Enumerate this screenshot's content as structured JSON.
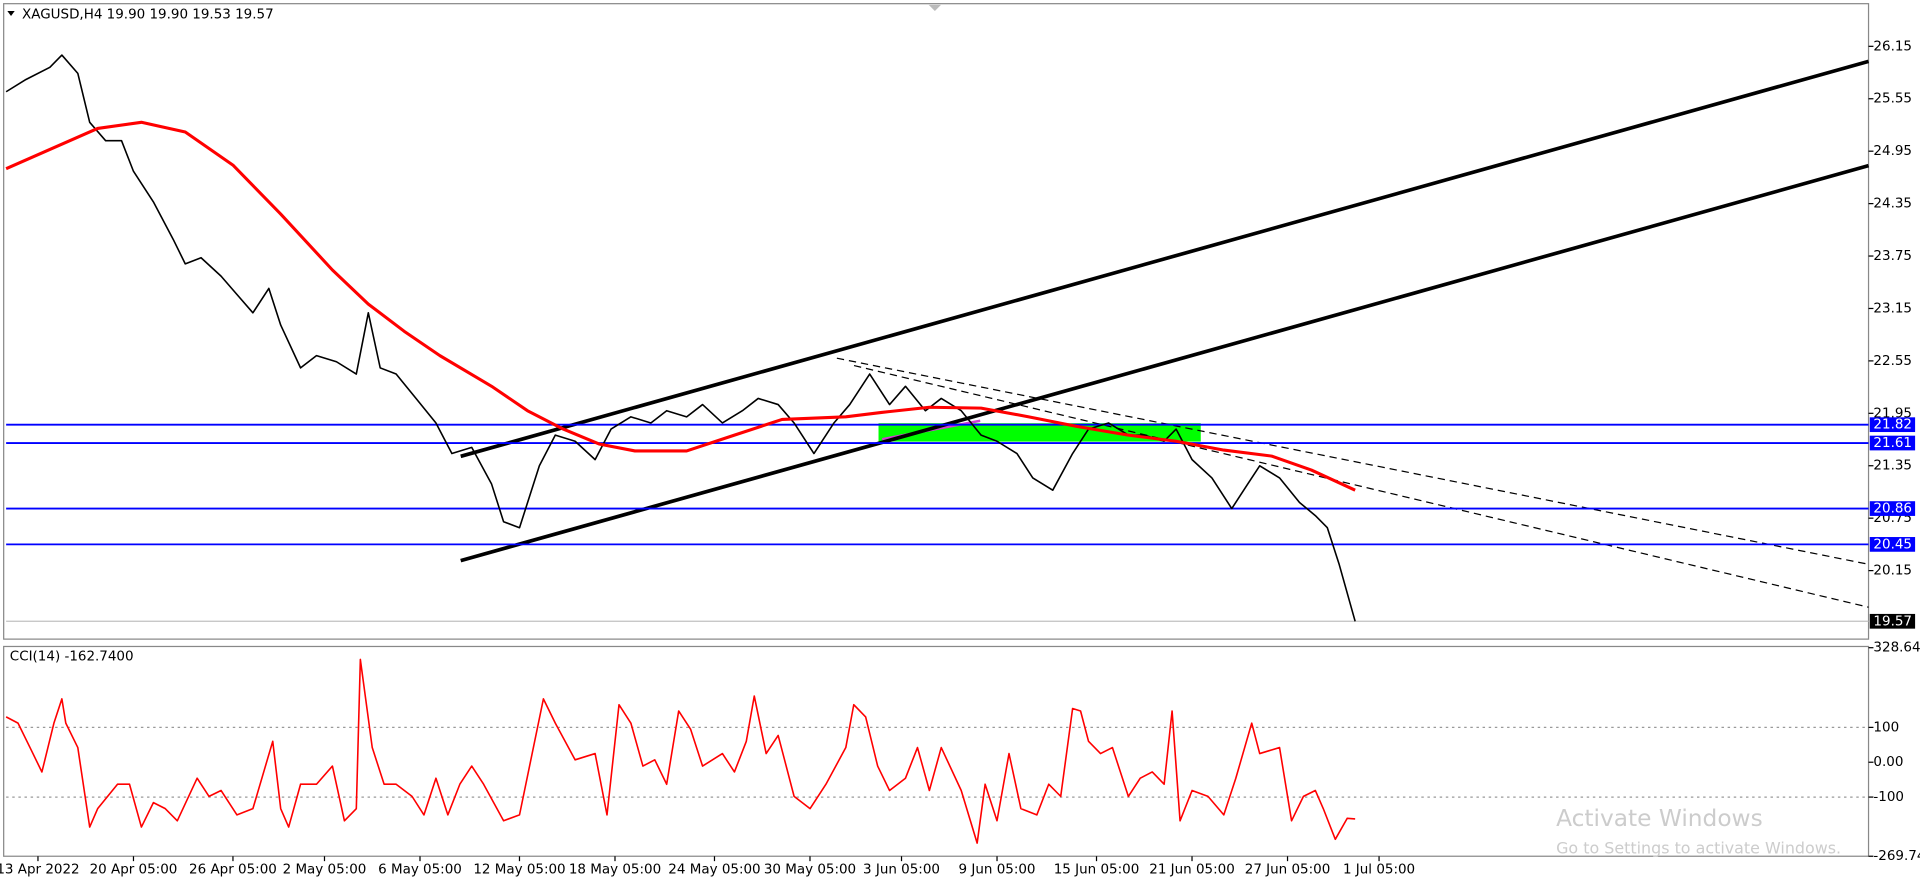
{
  "chart_data": [
    {
      "type": "line",
      "title": "XAGUSD,H4  19.90 19.90 19.53 19.57",
      "xlim": [
        0,
        468
      ],
      "ylim": [
        19.38,
        26.61
      ],
      "yticks": [
        26.15,
        25.55,
        24.95,
        24.35,
        23.75,
        23.15,
        22.55,
        21.95,
        21.35,
        20.75,
        20.15
      ],
      "levels": [
        21.82,
        21.61,
        20.86,
        20.45
      ],
      "level_color": "#0000ff",
      "last_value": 19.57,
      "grid": false,
      "series": [
        {
          "color": "#000000",
          "x": [
            0,
            5,
            11,
            14,
            18,
            21,
            25,
            29,
            32,
            37,
            42,
            45,
            49,
            54,
            58,
            62,
            66,
            69,
            74,
            78,
            83,
            88,
            91,
            94,
            98,
            103,
            108,
            112,
            117,
            122,
            125,
            129,
            134,
            138,
            143,
            148,
            152,
            157,
            162,
            166,
            171,
            175,
            180,
            185,
            189,
            194,
            198,
            203,
            208,
            212,
            217,
            222,
            226,
            231,
            235,
            240,
            245,
            249,
            254,
            258,
            263,
            268,
            272,
            277,
            282,
            286,
            291,
            294,
            298,
            303,
            308,
            312,
            315,
            320,
            325,
            329,
            332,
            335,
            339
          ],
          "values": [
            25.63,
            25.77,
            25.91,
            26.05,
            25.84,
            25.28,
            25.07,
            25.07,
            24.72,
            24.37,
            23.94,
            23.66,
            23.73,
            23.52,
            23.31,
            23.1,
            23.38,
            22.96,
            22.47,
            22.61,
            22.54,
            22.4,
            23.1,
            22.47,
            22.4,
            22.12,
            21.84,
            21.49,
            21.56,
            21.14,
            20.71,
            20.64,
            21.35,
            21.7,
            21.63,
            21.42,
            21.77,
            21.91,
            21.84,
            21.98,
            21.91,
            22.05,
            21.84,
            21.98,
            22.12,
            22.05,
            21.84,
            21.49,
            21.84,
            22.05,
            22.4,
            22.05,
            22.26,
            21.98,
            22.12,
            21.98,
            21.7,
            21.63,
            21.49,
            21.21,
            21.07,
            21.49,
            21.77,
            21.84,
            21.7,
            21.7,
            21.63,
            21.77,
            21.42,
            21.21,
            20.86,
            21.14,
            21.35,
            21.21,
            20.93,
            20.78,
            20.64,
            20.22,
            19.57
          ]
        },
        {
          "color": "#ff0000",
          "x": [
            0,
            11,
            23,
            34,
            45,
            57,
            69,
            82,
            91,
            100,
            109,
            122,
            131,
            140,
            149,
            158,
            171,
            183,
            195,
            211,
            220,
            232,
            245,
            257,
            269,
            282,
            294,
            306,
            318,
            328,
            339
          ],
          "values": [
            24.75,
            24.97,
            25.21,
            25.28,
            25.17,
            24.79,
            24.23,
            23.59,
            23.2,
            22.89,
            22.61,
            22.26,
            21.98,
            21.77,
            21.6,
            21.52,
            21.52,
            21.7,
            21.88,
            21.91,
            21.96,
            22.02,
            22.01,
            21.91,
            21.8,
            21.7,
            21.63,
            21.53,
            21.46,
            21.3,
            21.07
          ]
        }
      ]
    },
    {
      "type": "line",
      "title": "CCI(14) -162.7400",
      "xlim": [
        0,
        468
      ],
      "ylim": [
        -269.749,
        328.646
      ],
      "yticks": [
        328.646,
        100,
        {
          "value": 0,
          "label": "0.00"
        },
        -100,
        -269.749
      ],
      "levels": [
        100,
        -100
      ],
      "level_color": "#999999",
      "xticks": [
        {
          "value": 8,
          "label": "13 Apr 2022"
        },
        {
          "value": 32,
          "label": "20 Apr 05:00"
        },
        {
          "value": 57,
          "label": "26 Apr 05:00"
        },
        {
          "value": 80,
          "label": "2 May 05:00"
        },
        {
          "value": 104,
          "label": "6 May 05:00"
        },
        {
          "value": 129,
          "label": "12 May 05:00"
        },
        {
          "value": 153,
          "label": "18 May 05:00"
        },
        {
          "value": 178,
          "label": "24 May 05:00"
        },
        {
          "value": 202,
          "label": "30 May 05:00"
        },
        {
          "value": 225,
          "label": "3 Jun 05:00"
        },
        {
          "value": 249,
          "label": "9 Jun 05:00"
        },
        {
          "value": 274,
          "label": "15 Jun 05:00"
        },
        {
          "value": 298,
          "label": "21 Jun 05:00"
        },
        {
          "value": 322,
          "label": "27 Jun 05:00"
        },
        {
          "value": 345,
          "label": "1 Jul 05:00"
        }
      ],
      "series": [
        {
          "color": "#ff0000",
          "x": [
            0,
            3,
            6,
            9,
            12,
            14,
            15,
            18,
            21,
            23,
            28,
            31,
            34,
            37,
            40,
            43,
            48,
            51,
            54,
            58,
            62,
            67,
            69,
            71,
            74,
            78,
            82,
            85,
            88,
            89,
            92,
            95,
            98,
            102,
            105,
            108,
            111,
            114,
            117,
            120,
            125,
            129,
            135,
            138,
            143,
            148,
            151,
            154,
            157,
            160,
            163,
            166,
            169,
            172,
            175,
            180,
            183,
            186,
            188,
            191,
            194,
            198,
            202,
            206,
            211,
            213,
            216,
            219,
            222,
            226,
            229,
            232,
            235,
            240,
            244,
            246,
            249,
            252,
            255,
            259,
            262,
            265,
            268,
            270,
            272,
            275,
            278,
            282,
            285,
            288,
            291,
            293,
            295,
            298,
            302,
            306,
            309,
            313,
            315,
            320,
            323,
            326,
            329,
            331,
            334,
            337,
            339
          ],
          "values": [
            130,
            112,
            42,
            -28,
            112,
            182,
            112,
            42,
            -186,
            -133,
            -63,
            -63,
            -186,
            -116,
            -133,
            -168,
            -46,
            -98,
            -81,
            -151,
            -133,
            60,
            -133,
            -186,
            -63,
            -63,
            -11,
            -168,
            -133,
            295,
            42,
            -63,
            -63,
            -98,
            -151,
            -46,
            -151,
            -63,
            -11,
            -63,
            -168,
            -151,
            182,
            112,
            7,
            25,
            -151,
            165,
            112,
            -11,
            7,
            -63,
            147,
            95,
            -11,
            25,
            -28,
            60,
            190,
            25,
            77,
            -98,
            -133,
            -63,
            42,
            165,
            130,
            -11,
            -81,
            -46,
            42,
            -81,
            42,
            -81,
            -232,
            -63,
            -168,
            25,
            -133,
            -151,
            -63,
            -98,
            154,
            147,
            60,
            25,
            42,
            -98,
            -46,
            -28,
            -63,
            147,
            -168,
            -81,
            -98,
            -151,
            -46,
            112,
            25,
            42,
            -168,
            -98,
            -81,
            -133,
            -221,
            -161,
            -162.74
          ]
        }
      ]
    }
  ],
  "watermark": {
    "title": "Activate Windows",
    "subtitle": "Go to Settings to activate Windows."
  }
}
